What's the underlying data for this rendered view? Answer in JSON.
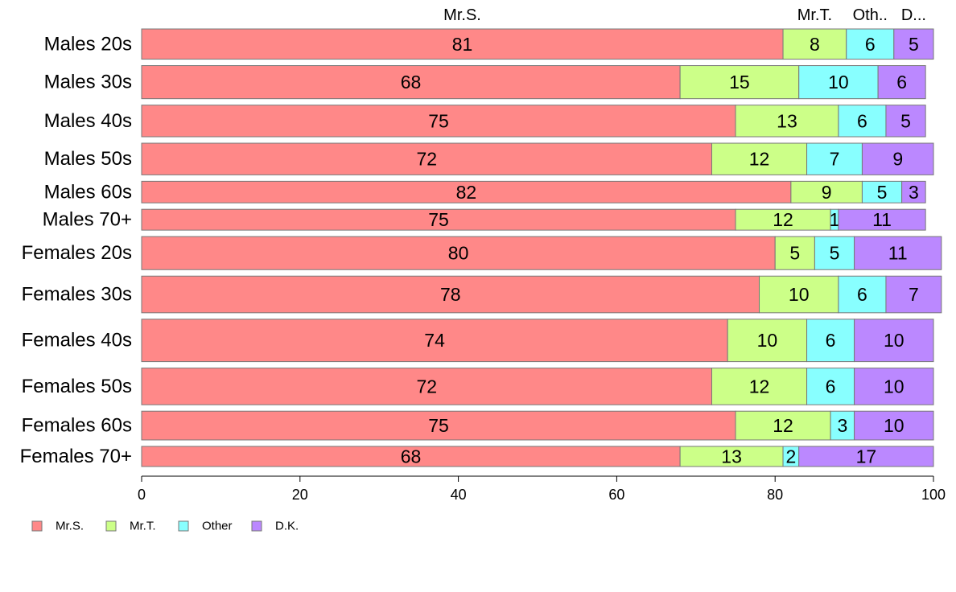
{
  "chart_data": {
    "type": "bar",
    "orientation": "horizontal",
    "stacked": true,
    "categories": [
      "Males 20s",
      "Males 30s",
      "Males 40s",
      "Males 50s",
      "Males 60s",
      "Males 70+",
      "Females 20s",
      "Females 30s",
      "Females 40s",
      "Females 50s",
      "Females 60s",
      "Females 70+"
    ],
    "series": [
      {
        "name": "Mr.S.",
        "values": [
          81,
          68,
          75,
          72,
          82,
          75,
          80,
          78,
          74,
          72,
          75,
          68
        ]
      },
      {
        "name": "Mr.T.",
        "values": [
          8,
          15,
          13,
          12,
          9,
          12,
          5,
          10,
          10,
          12,
          12,
          13
        ]
      },
      {
        "name": "Other",
        "values": [
          6,
          10,
          6,
          7,
          5,
          1,
          5,
          6,
          6,
          6,
          3,
          2
        ]
      },
      {
        "name": "D.K.",
        "values": [
          5,
          6,
          5,
          9,
          3,
          11,
          11,
          7,
          10,
          10,
          10,
          17
        ]
      }
    ],
    "top_labels": [
      "Mr.S.",
      "Mr.T.",
      "Oth..",
      "D..."
    ],
    "row_weights": [
      4.2,
      4.6,
      4.4,
      4.4,
      3.0,
      2.9,
      4.6,
      5.1,
      5.9,
      5.1,
      4.0,
      2.8
    ],
    "x_ticks": [
      0,
      20,
      40,
      60,
      80,
      100
    ],
    "xlim": [
      0,
      100
    ],
    "colors": [
      "#ff8888",
      "#ccff88",
      "#88ffff",
      "#bb88ff"
    ],
    "legend": {
      "position": "bottom-left",
      "labels": [
        "Mr.S.",
        "Mr.T.",
        "Other",
        "D.K."
      ]
    },
    "grid": false
  }
}
